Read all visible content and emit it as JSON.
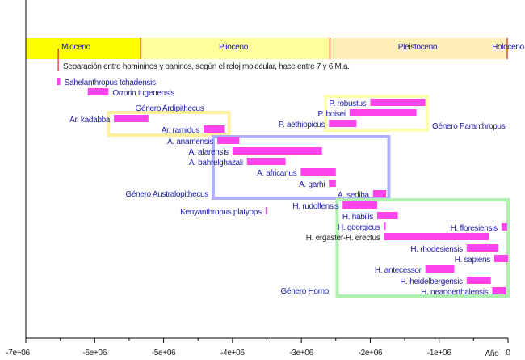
{
  "chart_data": {
    "type": "timeline",
    "xlabel": "Año",
    "xlim": [
      -7000000,
      0
    ],
    "x_ticks": [
      -7000000,
      -6000000,
      -5000000,
      -4000000,
      -3000000,
      -2000000,
      -1000000,
      0
    ],
    "x_tick_labels": [
      "-7e+06",
      "-6e+06",
      "-5e+06",
      "-4e+06",
      "-3e+06",
      "-2e+06",
      "-1e+06",
      "0"
    ],
    "periods": [
      {
        "name": "Mioceno",
        "start": -7000000,
        "end": -5333000,
        "color": "#ffff00"
      },
      {
        "name": "Plioceno",
        "start": -5333000,
        "end": -2588000,
        "color": "#ffff99"
      },
      {
        "name": "Pleistoceno",
        "start": -2588000,
        "end": -11700,
        "color": "#fff0b8"
      },
      {
        "name": "Holoceno",
        "start": -11700,
        "end": 0,
        "color": "#fff6cc"
      }
    ],
    "annotation": {
      "text": "Separación entre homininos y paninos, según el reloj molecular, hace entre 7 y 6 M.a.",
      "x": -6530000
    },
    "bar_color": "#ff44ee",
    "species": [
      {
        "name": "Sahelanthropus tchadensis",
        "start": -6550000,
        "end": -6500000
      },
      {
        "name": "Orrorin tugenensis",
        "start": -6100000,
        "end": -5800000
      },
      {
        "name": "P. robustus",
        "start": -2000000,
        "end": -1200000
      },
      {
        "name": "P. boisei",
        "start": -2300000,
        "end": -1330000
      },
      {
        "name": "Ar. kadabba",
        "start": -5720000,
        "end": -5220000
      },
      {
        "name": "P. aethiopicus",
        "start": -2600000,
        "end": -2200000
      },
      {
        "name": "Ar. ramidus",
        "start": -4420000,
        "end": -4120000
      },
      {
        "name": "A. anamensis",
        "start": -4220000,
        "end": -3900000
      },
      {
        "name": "A. afarensis",
        "start": -4000000,
        "end": -2700000
      },
      {
        "name": "A. bahrelghazali",
        "start": -3790000,
        "end": -3230000
      },
      {
        "name": "A. africanus",
        "start": -3010000,
        "end": -2500000
      },
      {
        "name": "A. garhi",
        "start": -2600000,
        "end": -2500000
      },
      {
        "name": "A. sediba",
        "start": -1960000,
        "end": -1770000
      },
      {
        "name": "H. rudolfensis",
        "start": -2400000,
        "end": -1900000
      },
      {
        "name": "Kenyanthropus platyops",
        "start": -3520000,
        "end": -3500000
      },
      {
        "name": "H. habilis",
        "start": -1900000,
        "end": -1600000
      },
      {
        "name": "H. georgicus",
        "start": -1800000,
        "end": -1780000
      },
      {
        "name": "H. floresiensis",
        "start": -95000,
        "end": -12000
      },
      {
        "name": "H. ergaster-H. erectus",
        "start": -1800000,
        "end": -280000
      },
      {
        "name": "H. rhodesiensis",
        "start": -600000,
        "end": -140000
      },
      {
        "name": "H. sapiens",
        "start": -200000,
        "end": 0
      },
      {
        "name": "H. antecessor",
        "start": -1200000,
        "end": -780000
      },
      {
        "name": "H. heidelbergensis",
        "start": -600000,
        "end": -250000
      },
      {
        "name": "H. neanderthalensis",
        "start": -230000,
        "end": -30000
      }
    ],
    "genera": [
      {
        "name": "Género Ardipithecus",
        "start": -5800000,
        "end": -4050000,
        "color": "#fff0a0"
      },
      {
        "name": "Género Paranthropus",
        "start": -2650000,
        "end": -1170000,
        "color": "#ffffb0"
      },
      {
        "name": "Género Australopithecus",
        "start": -4280000,
        "end": -1730000,
        "color": "#b0b0f8"
      },
      {
        "name": "Género Homo",
        "start": -2480000,
        "end": 0,
        "color": "#b0f0b0"
      }
    ]
  }
}
